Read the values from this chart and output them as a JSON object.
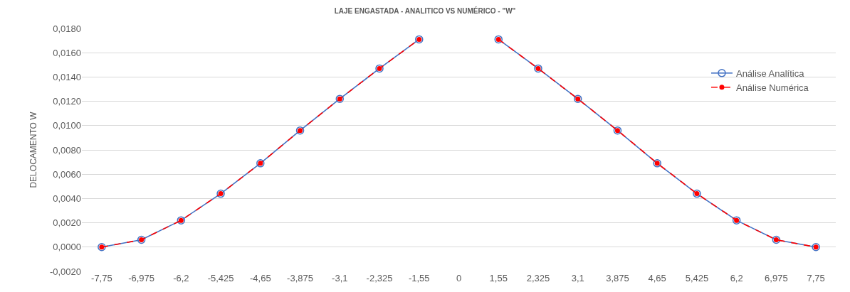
{
  "chart_data": {
    "type": "line",
    "title": "LAJE ENGASTADA - ANALITICO VS NUMÉRICO - \"W\"",
    "ylabel": "DELOCAMENTO W",
    "categories": [
      "-7,75",
      "-6,975",
      "-6,2",
      "-5,425",
      "-4,65",
      "-3,875",
      "-3,1",
      "-2,325",
      "-1,55",
      "0",
      "1,55",
      "2,325",
      "3,1",
      "3,875",
      "4,65",
      "5,425",
      "6,2",
      "6,975",
      "7,75"
    ],
    "series": [
      {
        "name": "Análise Analítica",
        "color": "#4472c4",
        "marker": "circle",
        "line_style": "solid",
        "values": [
          0.0,
          0.0006,
          0.0022,
          0.0044,
          0.0069,
          0.0096,
          0.0122,
          0.0147,
          0.0171,
          null,
          0.0171,
          0.0147,
          0.0122,
          0.0096,
          0.0069,
          0.0044,
          0.0022,
          0.0006,
          0.0
        ]
      },
      {
        "name": "Análise Numérica",
        "color": "#ff0000",
        "marker": "circle",
        "line_style": "dashed",
        "values": [
          0.0,
          0.0006,
          0.0022,
          0.0044,
          0.0069,
          0.0096,
          0.0122,
          0.0147,
          0.0171,
          null,
          0.0171,
          0.0147,
          0.0122,
          0.0096,
          0.0069,
          0.0044,
          0.0022,
          0.0006,
          0.0
        ]
      }
    ],
    "ylim": [
      -0.002,
      0.018
    ],
    "yticks": [
      {
        "value": -0.002,
        "label": "-0,0020"
      },
      {
        "value": 0,
        "label": "0,0000"
      },
      {
        "value": 0.002,
        "label": "0,0020"
      },
      {
        "value": 0.004,
        "label": "0,0040"
      },
      {
        "value": 0.006,
        "label": "0,0060"
      },
      {
        "value": 0.008,
        "label": "0,0080"
      },
      {
        "value": 0.01,
        "label": "0,0100"
      },
      {
        "value": 0.012,
        "label": "0,0120"
      },
      {
        "value": 0.014,
        "label": "0,0140"
      },
      {
        "value": 0.016,
        "label": "0,0160"
      },
      {
        "value": 0.018,
        "label": "0,0180"
      }
    ],
    "grid": "y",
    "legend": "top right"
  }
}
